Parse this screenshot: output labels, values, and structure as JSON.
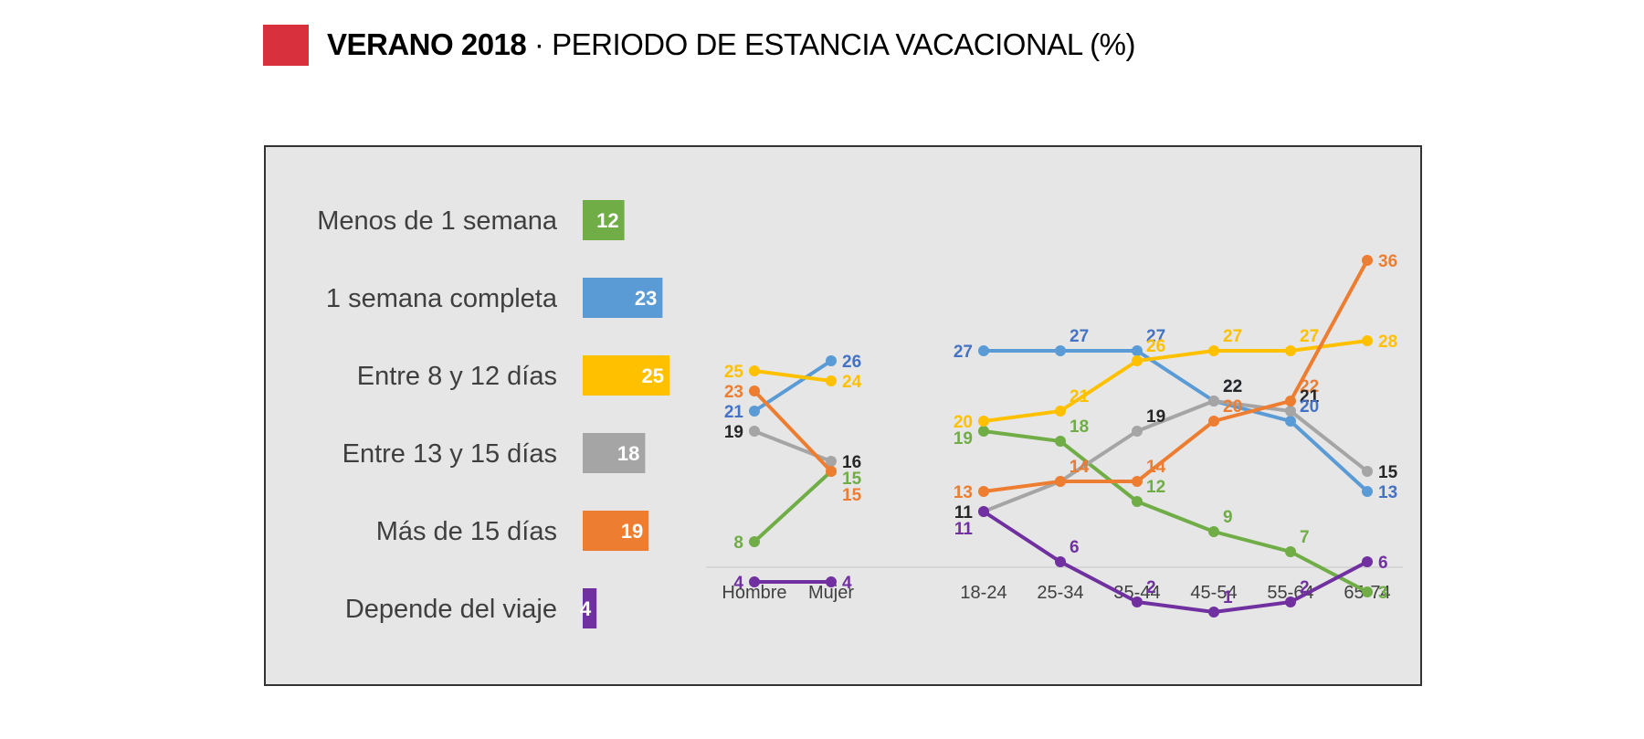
{
  "header": {
    "accent_color": "#d9303e",
    "title_bold": "VERANO 2018",
    "title_separator": " · ",
    "title_rest": "PERIODO DE ESTANCIA VACACIONAL (%)"
  },
  "chart_data": [
    {
      "type": "bar",
      "orientation": "horizontal",
      "categories": [
        "Menos de 1 semana",
        "1 semana completa",
        "Entre 8 y 12 días",
        "Entre 13 y 15 días",
        "Más de 15 días",
        "Depende del viaje"
      ],
      "values": [
        12,
        23,
        25,
        18,
        19,
        4
      ],
      "colors": [
        "#70ad47",
        "#5b9bd5",
        "#ffc000",
        "#a5a5a5",
        "#ed7d31",
        "#7030a0"
      ]
    },
    {
      "type": "line",
      "categories": [
        "Hombre",
        "Mujer"
      ],
      "series": [
        {
          "name": "Menos de 1 semana",
          "color": "#70ad47",
          "label_color": "#70ad47",
          "values": [
            8,
            15
          ]
        },
        {
          "name": "1 semana completa",
          "color": "#5b9bd5",
          "label_color": "#4472c4",
          "values": [
            21,
            26
          ]
        },
        {
          "name": "Entre 8 y 12 días",
          "color": "#ffc000",
          "label_color": "#ffc000",
          "values": [
            25,
            24
          ]
        },
        {
          "name": "Entre 13 y 15 días",
          "color": "#a5a5a5",
          "label_color": "#262626",
          "values": [
            19,
            16
          ]
        },
        {
          "name": "Más de 15 días",
          "color": "#ed7d31",
          "label_color": "#ed7d31",
          "values": [
            23,
            15
          ]
        },
        {
          "name": "Depende del viaje",
          "color": "#7030a0",
          "label_color": "#7030a0",
          "values": [
            4,
            4
          ]
        }
      ]
    },
    {
      "type": "line",
      "categories": [
        "18-24",
        "25-34",
        "35-44",
        "45-54",
        "55-64",
        "65-74"
      ],
      "series": [
        {
          "name": "Menos de 1 semana",
          "color": "#70ad47",
          "label_color": "#70ad47",
          "values": [
            19,
            18,
            12,
            9,
            7,
            3
          ]
        },
        {
          "name": "1 semana completa",
          "color": "#5b9bd5",
          "label_color": "#4472c4",
          "values": [
            27,
            27,
            27,
            22,
            20,
            13
          ]
        },
        {
          "name": "Entre 8 y 12 días",
          "color": "#ffc000",
          "label_color": "#ffc000",
          "values": [
            20,
            21,
            26,
            27,
            27,
            28
          ]
        },
        {
          "name": "Entre 13 y 15 días",
          "color": "#a5a5a5",
          "label_color": "#262626",
          "values": [
            11,
            14,
            19,
            22,
            21,
            15
          ]
        },
        {
          "name": "Más de 15 días",
          "color": "#ed7d31",
          "label_color": "#ed7d31",
          "values": [
            13,
            14,
            14,
            20,
            22,
            36
          ]
        },
        {
          "name": "Depende del viaje",
          "color": "#7030a0",
          "label_color": "#7030a0",
          "values": [
            11,
            6,
            2,
            1,
            2,
            6
          ]
        }
      ]
    }
  ]
}
